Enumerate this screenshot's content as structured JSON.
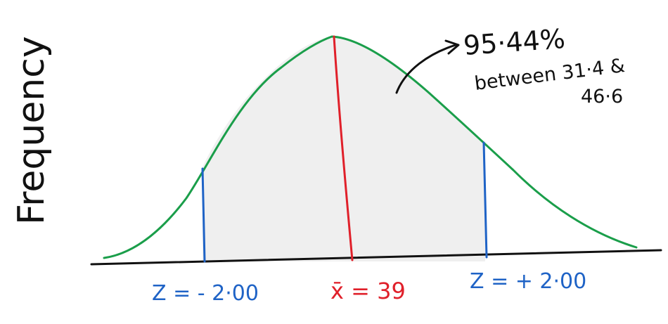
{
  "axis": {
    "ylabel": "Frequency"
  },
  "labels": {
    "z_left": "Z = - 2·00",
    "mean": "x̄ = 39",
    "z_right": "Z = + 2·00"
  },
  "annotation": {
    "line1": "95·44%",
    "line2": "between 31·4 &",
    "line3": "46·6"
  },
  "colors": {
    "curve": "#1a9e4a",
    "mean_line": "#e0202a",
    "z_lines": "#1f63c6",
    "baseline": "#111111",
    "shade": "#efefef",
    "ink": "#111111"
  }
}
